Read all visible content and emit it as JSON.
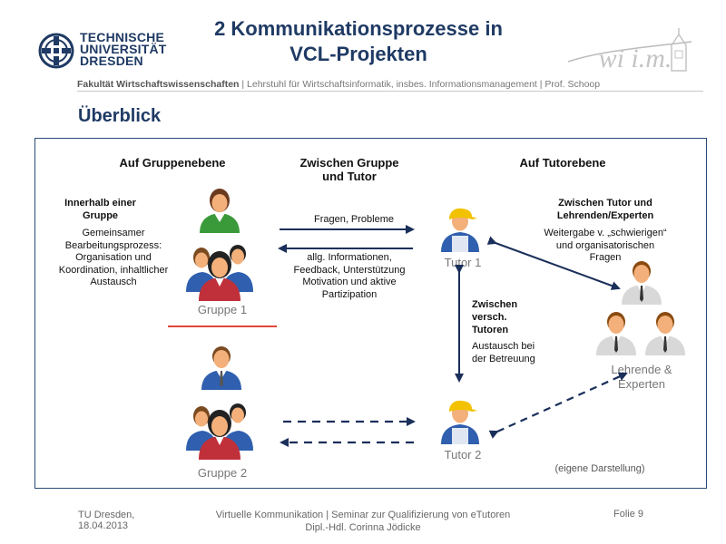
{
  "header": {
    "logo_line1": "TECHNISCHE",
    "logo_line2": "UNIVERSITÄT",
    "logo_line3": "DRESDEN",
    "title_line1": "2 Kommunikationsprozesse in",
    "title_line2": "VCL-Projekten",
    "faculty_bold": "Fakultät Wirtschaftswissenschaften",
    "faculty_rest": " | Lehrstuhl für Wirtschaftsinformatik, insbes. Informationsmanagement | Prof. Schoop",
    "wiim_logo_text": "wi i.m."
  },
  "section_title": "Überblick",
  "columns": {
    "left": "Auf Gruppenebene",
    "middle_line1": "Zwischen Gruppe",
    "middle_line2": "und Tutor",
    "right": "Auf Tutorebene"
  },
  "group_block": {
    "heading_line1": "Innerhalb einer",
    "heading_line2": "Gruppe",
    "text_lines": [
      "Gemeinsamer",
      "Bearbeitungsprozess:",
      "Organisation und",
      "Koordination, inhaltlicher",
      "Austausch"
    ]
  },
  "middle_block": {
    "arrow_top_label": "Fragen, Probleme",
    "arrow_bottom_lines": [
      "allg. Informationen,",
      "Feedback, Unterstützung",
      "Motivation und aktive",
      "Partizipation"
    ]
  },
  "tutor_expert_block": {
    "heading_line1": "Zwischen Tutor und",
    "heading_line2": "Lehrenden/Experten",
    "text_lines": [
      "Weitergabe v. „schwierigen“",
      "und organisatorischen",
      "Fragen"
    ]
  },
  "tutors_block": {
    "heading_lines": [
      "Zwischen",
      "versch.",
      "Tutoren"
    ],
    "text_lines": [
      "Austausch bei",
      "der Betreuung"
    ]
  },
  "labels": {
    "gruppe1": "Gruppe 1",
    "gruppe2": "Gruppe 2",
    "tutor1": "Tutor 1",
    "tutor2": "Tutor 2",
    "experts_line1": "Lehrende &",
    "experts_line2": "Experten",
    "source_note": "(eigene Darstellung)"
  },
  "footer": {
    "org_line1": "TU Dresden,",
    "org_line2": "18.04.2013",
    "center_line1": "Virtuelle Kommunikation | Seminar zur Qualifizierung von eTutoren",
    "center_line2": "Dipl.-Hdl. Corinna Jödicke",
    "slide": "Folie 9"
  },
  "colors": {
    "brand_blue": "#1f3a64",
    "arrow_navy": "#1a2f5a",
    "separator_red": "#e0463a",
    "person_green": "#3a9a3a",
    "person_blue": "#2f5fae",
    "person_red": "#c0303a",
    "tutor_yellow": "#f2c200",
    "expert_gray": "#d8d8d8"
  }
}
